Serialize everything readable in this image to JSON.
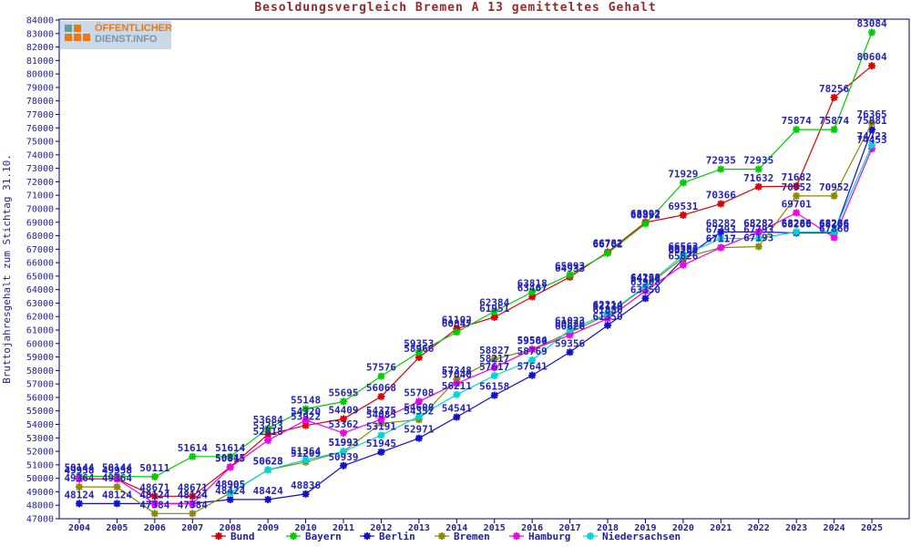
{
  "title": "Besoldungsvergleich Bremen A 13 gemitteltes Gehalt",
  "ylabel": "Bruttojahresgehalt zum Stichtag 31.10.",
  "logo": {
    "line1": "ÖFFENTLICHER",
    "line2": "DIENST.INFO"
  },
  "colors": {
    "frame": "#000066",
    "axis_text": "#222299",
    "point_label": "#2222bb",
    "legend_text": "#222299",
    "title_text": "#9b2828"
  },
  "chart_data": {
    "type": "line",
    "x": [
      2004,
      2005,
      2006,
      2007,
      2008,
      2009,
      2010,
      2011,
      2012,
      2013,
      2014,
      2015,
      2016,
      2017,
      2018,
      2019,
      2020,
      2021,
      2022,
      2023,
      2024,
      2025
    ],
    "ylim": [
      47000,
      84000
    ],
    "ytick_step": 1000,
    "grid": false,
    "legend_position": "bottom",
    "marker": "asterisk",
    "title": "Besoldungsvergleich Bremen A 13 gemitteltes Gehalt",
    "xlabel": "",
    "ylabel": "Bruttojahresgehalt zum Stichtag 31.10.",
    "series": [
      {
        "name": "Bund",
        "color": "#dd0000",
        "values": [
          49958,
          49958,
          48671,
          48671,
          50845,
          53253,
          53922,
          54409,
          56068,
          58966,
          61102,
          61951,
          63467,
          64933,
          66782,
          68992,
          69531,
          70366,
          71632,
          71682,
          78256,
          80604
        ]
      },
      {
        "name": "Bayern",
        "color": "#00cc00",
        "values": [
          50144,
          50144,
          50111,
          51614,
          51614,
          53684,
          55148,
          55695,
          57576,
          59353,
          60847,
          62384,
          63818,
          65093,
          66702,
          68892,
          71929,
          72935,
          72935,
          75874,
          75874,
          83084
        ]
      },
      {
        "name": "Berlin",
        "color": "#1111cc",
        "values": [
          48124,
          48124,
          48124,
          48124,
          48424,
          48424,
          48836,
          50939,
          51945,
          52971,
          54541,
          56158,
          57641,
          59356,
          61350,
          63350,
          66269,
          68282,
          68282,
          68206,
          68206,
          75881
        ]
      },
      {
        "name": "Bremen",
        "color": "#8a8a00",
        "values": [
          49364,
          49364,
          47384,
          47384,
          48905,
          50628,
          51209,
          51993,
          54085,
          54352,
          57348,
          58827,
          59584,
          60828,
          62130,
          64190,
          66363,
          67117,
          67193,
          70952,
          70952,
          76365
        ]
      },
      {
        "name": "Hamburg",
        "color": "#ee00ee",
        "values": [
          49958,
          49958,
          48124,
          48124,
          50815,
          52818,
          54320,
          53362,
          54375,
          55708,
          57040,
          58217,
          59560,
          60626,
          61850,
          63908,
          65826,
          67117,
          68282,
          69701,
          67860,
          74453
        ]
      },
      {
        "name": "Niedersachsen",
        "color": "#00d5d5",
        "values": [
          null,
          null,
          null,
          null,
          48905,
          50623,
          51364,
          51993,
          53191,
          54600,
          56211,
          57617,
          58769,
          61023,
          62214,
          64238,
          66563,
          67793,
          67793,
          68286,
          68286,
          74723
        ]
      }
    ]
  }
}
